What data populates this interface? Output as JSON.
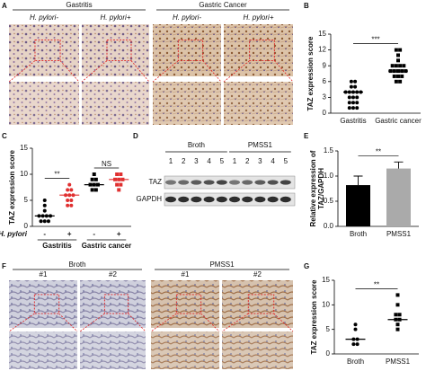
{
  "panel_letters": [
    "A",
    "B",
    "C",
    "D",
    "E",
    "F",
    "G"
  ],
  "panel_a": {
    "groups": [
      "Gastritis",
      "Gastric Cancer"
    ],
    "columns": [
      "H. pylori-",
      "H. pylori+",
      "H. pylori-",
      "H. pylori+"
    ]
  },
  "panel_d": {
    "groups": [
      "Broth",
      "PMSS1"
    ],
    "lanes": [
      "1",
      "2",
      "3",
      "4",
      "5",
      "1",
      "2",
      "3",
      "4",
      "5"
    ],
    "rows": [
      "TAZ",
      "GAPDH"
    ]
  },
  "panel_f": {
    "groups": [
      "Broth",
      "PMSS1"
    ],
    "columns": [
      "#1",
      "#2",
      "#1",
      "#2"
    ]
  },
  "chart_data": [
    {
      "type": "scatter",
      "ylabel": [
        "TAZ expression score"
      ],
      "categories": [
        "Gastritis",
        "Gastric cancer"
      ],
      "ylim": [
        0,
        15
      ],
      "yticks": [
        0,
        3,
        6,
        9,
        12,
        15
      ],
      "series": [
        {
          "color": "#000000",
          "marker": "circle",
          "values": [
            6,
            6,
            5,
            5,
            4,
            4,
            4,
            4,
            4,
            3,
            3,
            3,
            2,
            2,
            2,
            1,
            1,
            1
          ],
          "median": 4
        },
        {
          "color": "#000000",
          "marker": "square",
          "values": [
            12,
            12,
            11,
            10,
            9,
            9,
            9,
            9,
            8,
            8,
            8,
            8,
            8,
            7,
            7,
            7,
            6,
            6
          ],
          "median": 8
        }
      ],
      "annotations": [
        "***"
      ]
    },
    {
      "type": "scatter",
      "ylabel": [
        "TAZ expression score"
      ],
      "factor_label": "H. pylori",
      "categories": [
        "-",
        "+",
        "-",
        "+"
      ],
      "group_labels": [
        "Gastritis",
        "Gastric cancer"
      ],
      "ylim": [
        0,
        15
      ],
      "yticks": [
        0,
        5,
        10,
        15
      ],
      "series": [
        {
          "color": "#000000",
          "marker": "circle",
          "values": [
            5,
            4,
            3,
            2,
            2,
            2,
            2,
            1,
            1,
            1
          ],
          "median": 2
        },
        {
          "color": "#e03030",
          "marker": "circle",
          "values": [
            8,
            7,
            7,
            6,
            6,
            6,
            5,
            5,
            4,
            4
          ],
          "median": 6
        },
        {
          "color": "#000000",
          "marker": "square",
          "values": [
            10,
            9,
            9,
            8,
            8,
            8,
            7,
            7
          ],
          "median": 8
        },
        {
          "color": "#e03030",
          "marker": "square",
          "values": [
            10,
            10,
            9,
            9,
            9,
            8,
            8,
            7
          ],
          "median": 9
        }
      ],
      "annotations": [
        "**",
        "NS"
      ]
    },
    {
      "type": "bar",
      "ylabel": [
        "Relative expression of",
        "TAZ/GAPDH"
      ],
      "categories": [
        "Broth",
        "PMSS1"
      ],
      "values": [
        0.82,
        1.15
      ],
      "errors": [
        0.18,
        0.13
      ],
      "colors": [
        "#000000",
        "#aaaaaa"
      ],
      "ylim": [
        0,
        1.5
      ],
      "yticks": [
        {
          "value": 0,
          "label": "0.0"
        },
        {
          "value": 0.5,
          "label": "0.5"
        },
        {
          "value": 1,
          "label": "1.0"
        },
        {
          "value": 1.5,
          "label": "1.5"
        }
      ],
      "annotations": [
        "**"
      ]
    },
    {
      "type": "scatter",
      "ylabel": [
        "TAZ expression score"
      ],
      "categories": [
        "Broth",
        "PMSS1"
      ],
      "ylim": [
        0,
        15
      ],
      "yticks": [
        0,
        5,
        10,
        15
      ],
      "series": [
        {
          "color": "#000000",
          "marker": "circle",
          "values": [
            6,
            5,
            3,
            3,
            2,
            2
          ],
          "median": 3
        },
        {
          "color": "#000000",
          "marker": "square",
          "values": [
            12,
            10,
            8,
            8,
            7,
            7,
            6,
            5
          ],
          "median": 7
        }
      ],
      "annotations": [
        "**"
      ]
    }
  ]
}
